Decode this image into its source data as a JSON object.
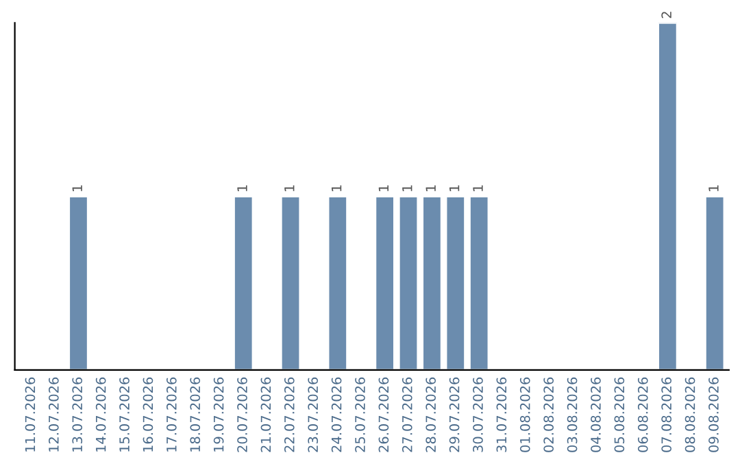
{
  "chart_data": {
    "type": "bar",
    "categories": [
      "11.07.2026",
      "12.07.2026",
      "13.07.2026",
      "14.07.2026",
      "15.07.2026",
      "16.07.2026",
      "17.07.2026",
      "18.07.2026",
      "19.07.2026",
      "20.07.2026",
      "21.07.2026",
      "22.07.2026",
      "23.07.2026",
      "24.07.2026",
      "25.07.2026",
      "26.07.2026",
      "27.07.2026",
      "28.07.2026",
      "29.07.2026",
      "30.07.2026",
      "31.07.2026",
      "01.08.2026",
      "02.08.2026",
      "03.08.2026",
      "04.08.2026",
      "05.08.2026",
      "06.08.2026",
      "07.08.2026",
      "08.08.2026",
      "09.08.2026"
    ],
    "values": [
      null,
      null,
      1,
      null,
      null,
      null,
      null,
      null,
      null,
      1,
      null,
      1,
      null,
      1,
      null,
      1,
      1,
      1,
      1,
      1,
      null,
      null,
      null,
      null,
      null,
      null,
      null,
      2,
      null,
      1
    ],
    "value_labels": [
      null,
      null,
      "1",
      null,
      null,
      null,
      null,
      null,
      null,
      "1",
      null,
      "1",
      null,
      "1",
      null,
      "1",
      "1",
      "1",
      "1",
      "1",
      null,
      null,
      null,
      null,
      null,
      null,
      null,
      "2",
      null,
      "1"
    ],
    "color": "#6b8cae",
    "ylim": [
      0,
      2
    ],
    "tick_labels": "x",
    "grid": false,
    "legend": false
  }
}
